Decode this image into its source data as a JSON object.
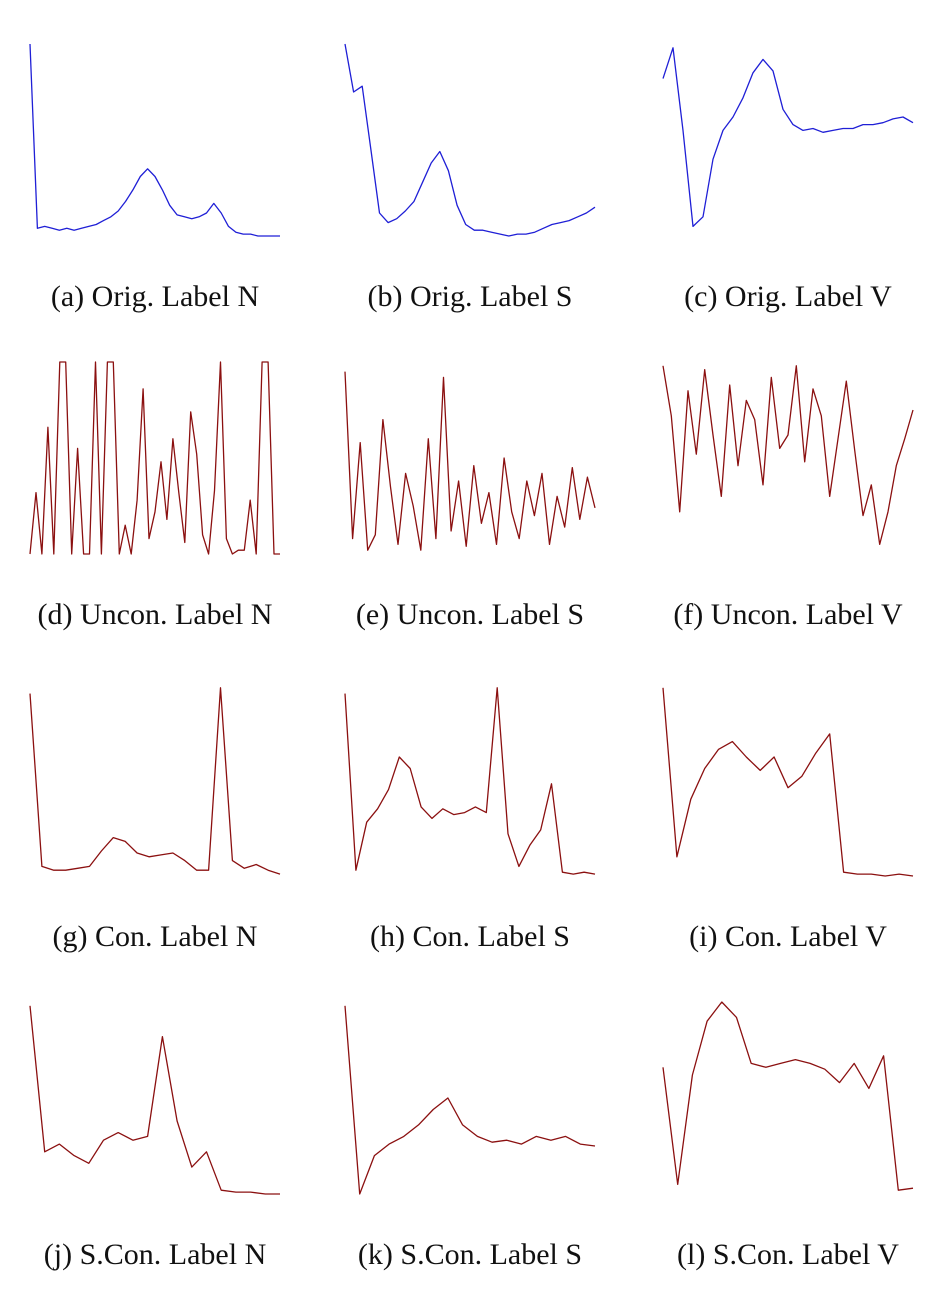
{
  "figure": {
    "colors": {
      "original": "#1f1fd6",
      "generated": "#8b1010"
    },
    "panels": [
      {
        "caption": "(a) Orig. Label N",
        "series_color": "original"
      },
      {
        "caption": "(b) Orig. Label S",
        "series_color": "original"
      },
      {
        "caption": "(c) Orig. Label V",
        "series_color": "original"
      },
      {
        "caption": "(d) Uncon. Label N",
        "series_color": "generated"
      },
      {
        "caption": "(e) Uncon. Label S",
        "series_color": "generated"
      },
      {
        "caption": "(f) Uncon. Label V",
        "series_color": "generated"
      },
      {
        "caption": "(g) Con. Label N",
        "series_color": "generated"
      },
      {
        "caption": "(h) Con. Label S",
        "series_color": "generated"
      },
      {
        "caption": "(i) Con. Label V",
        "series_color": "generated"
      },
      {
        "caption": "(j) S.Con. Label N",
        "series_color": "generated"
      },
      {
        "caption": "(k) S.Con. Label S",
        "series_color": "generated"
      },
      {
        "caption": "(l) S.Con. Label V",
        "series_color": "generated"
      }
    ]
  },
  "chart_data": [
    {
      "type": "line",
      "values": [
        1.0,
        0.04,
        0.05,
        0.04,
        0.03,
        0.04,
        0.03,
        0.04,
        0.05,
        0.06,
        0.08,
        0.1,
        0.13,
        0.18,
        0.24,
        0.31,
        0.35,
        0.31,
        0.24,
        0.16,
        0.11,
        0.1,
        0.09,
        0.1,
        0.12,
        0.17,
        0.12,
        0.05,
        0.02,
        0.01,
        0.01,
        0.0,
        0.0,
        0.0,
        0.0
      ]
    },
    {
      "type": "line",
      "values": [
        1.0,
        0.75,
        0.78,
        0.45,
        0.12,
        0.07,
        0.09,
        0.13,
        0.18,
        0.28,
        0.38,
        0.44,
        0.34,
        0.16,
        0.06,
        0.03,
        0.03,
        0.02,
        0.01,
        0.0,
        0.01,
        0.01,
        0.02,
        0.04,
        0.06,
        0.07,
        0.08,
        0.1,
        0.12,
        0.15
      ]
    },
    {
      "type": "line",
      "values": [
        0.82,
        0.98,
        0.55,
        0.05,
        0.1,
        0.4,
        0.55,
        0.62,
        0.72,
        0.85,
        0.92,
        0.86,
        0.66,
        0.58,
        0.55,
        0.56,
        0.54,
        0.55,
        0.56,
        0.56,
        0.58,
        0.58,
        0.59,
        0.61,
        0.62,
        0.59
      ]
    },
    {
      "type": "line",
      "values": [
        0,
        0.32,
        0,
        0.66,
        0,
        1,
        1,
        0,
        0.55,
        0,
        0,
        1,
        0,
        1,
        1,
        0,
        0.15,
        0,
        0.28,
        0.86,
        0.08,
        0.22,
        0.48,
        0.18,
        0.6,
        0.32,
        0.06,
        0.74,
        0.52,
        0.1,
        0,
        0.33,
        1,
        0.08,
        0,
        0.02,
        0.02,
        0.28,
        0,
        1,
        1,
        0,
        0
      ]
    },
    {
      "type": "line",
      "values": [
        0.95,
        0.08,
        0.58,
        0.02,
        0.1,
        0.7,
        0.35,
        0.05,
        0.42,
        0.25,
        0.02,
        0.6,
        0.08,
        0.92,
        0.12,
        0.38,
        0.04,
        0.46,
        0.16,
        0.32,
        0.05,
        0.5,
        0.22,
        0.08,
        0.38,
        0.2,
        0.42,
        0.05,
        0.3,
        0.14,
        0.45,
        0.18,
        0.4,
        0.24
      ]
    },
    {
      "type": "line",
      "values": [
        0.98,
        0.72,
        0.22,
        0.85,
        0.52,
        0.96,
        0.62,
        0.3,
        0.88,
        0.46,
        0.8,
        0.7,
        0.36,
        0.92,
        0.55,
        0.62,
        0.98,
        0.48,
        0.86,
        0.72,
        0.3,
        0.6,
        0.9,
        0.54,
        0.2,
        0.36,
        0.05,
        0.22,
        0.46,
        0.6,
        0.75
      ]
    },
    {
      "type": "line",
      "values": [
        0.95,
        0.05,
        0.03,
        0.03,
        0.04,
        0.05,
        0.13,
        0.2,
        0.18,
        0.12,
        0.1,
        0.11,
        0.12,
        0.08,
        0.03,
        0.03,
        0.98,
        0.08,
        0.04,
        0.06,
        0.03,
        0.01
      ]
    },
    {
      "type": "line",
      "values": [
        0.95,
        0.03,
        0.28,
        0.35,
        0.45,
        0.62,
        0.56,
        0.36,
        0.3,
        0.35,
        0.32,
        0.33,
        0.36,
        0.33,
        0.98,
        0.22,
        0.05,
        0.16,
        0.24,
        0.48,
        0.02,
        0.01,
        0.02,
        0.01
      ]
    },
    {
      "type": "line",
      "values": [
        0.98,
        0.1,
        0.4,
        0.56,
        0.66,
        0.7,
        0.62,
        0.55,
        0.62,
        0.46,
        0.52,
        0.64,
        0.74,
        0.02,
        0.01,
        0.01,
        0.0,
        0.01,
        0.0
      ]
    },
    {
      "type": "line",
      "values": [
        0.98,
        0.22,
        0.26,
        0.2,
        0.16,
        0.28,
        0.32,
        0.28,
        0.3,
        0.82,
        0.38,
        0.14,
        0.22,
        0.02,
        0.01,
        0.01,
        0.0,
        0.0
      ]
    },
    {
      "type": "line",
      "values": [
        0.98,
        0.0,
        0.2,
        0.26,
        0.3,
        0.36,
        0.44,
        0.5,
        0.36,
        0.3,
        0.27,
        0.28,
        0.26,
        0.3,
        0.28,
        0.3,
        0.26,
        0.25
      ]
    },
    {
      "type": "line",
      "values": [
        0.66,
        0.05,
        0.62,
        0.9,
        1.0,
        0.92,
        0.68,
        0.66,
        0.68,
        0.7,
        0.68,
        0.65,
        0.58,
        0.68,
        0.55,
        0.72,
        0.02,
        0.03
      ]
    }
  ]
}
